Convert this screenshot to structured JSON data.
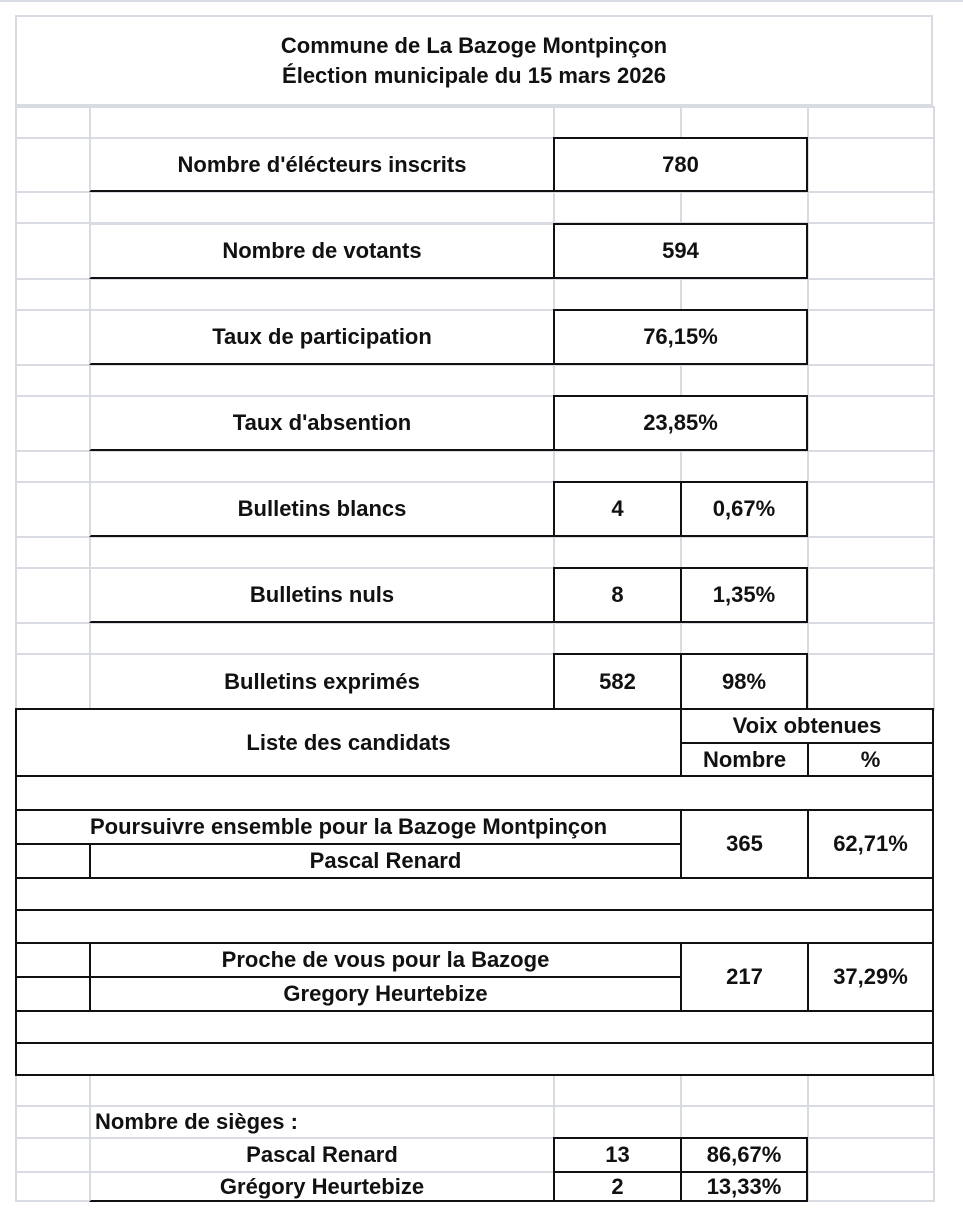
{
  "title": {
    "line1": "Commune de La Bazoge Montpinçon",
    "line2": "Élection municipale du 15 mars 2026"
  },
  "stats": [
    {
      "label": "Nombre d'élécteurs inscrits",
      "value": "780"
    },
    {
      "label": "Nombre de votants",
      "value": "594"
    },
    {
      "label": "Taux de participation",
      "value": "76,15%"
    },
    {
      "label": "Taux d'absention",
      "value": "23,85%"
    },
    {
      "label": "Bulletins blancs",
      "value": "4",
      "percent": "0,67%"
    },
    {
      "label": "Bulletins nuls",
      "value": "8",
      "percent": "1,35%"
    },
    {
      "label": "Bulletins exprimés",
      "value": "582",
      "percent": "98%"
    }
  ],
  "results_header": {
    "list": "Liste des candidats",
    "votes": "Voix obtenues",
    "count": "Nombre",
    "percent": "%"
  },
  "candidates": [
    {
      "list_name": "Poursuivre ensemble pour la Bazoge Montpinçon",
      "head": "Pascal Renard",
      "votes": "365",
      "percent": "62,71%"
    },
    {
      "list_name": "Proche de vous pour la Bazoge",
      "head": "Gregory Heurtebize",
      "votes": "217",
      "percent": "37,29%"
    }
  ],
  "seats": {
    "label": "Nombre de sièges :",
    "rows": [
      {
        "name": "Pascal Renard",
        "seats": "13",
        "percent": "86,67%"
      },
      {
        "name": "Grégory Heurtebize",
        "seats": "2",
        "percent": "13,33%"
      }
    ]
  }
}
